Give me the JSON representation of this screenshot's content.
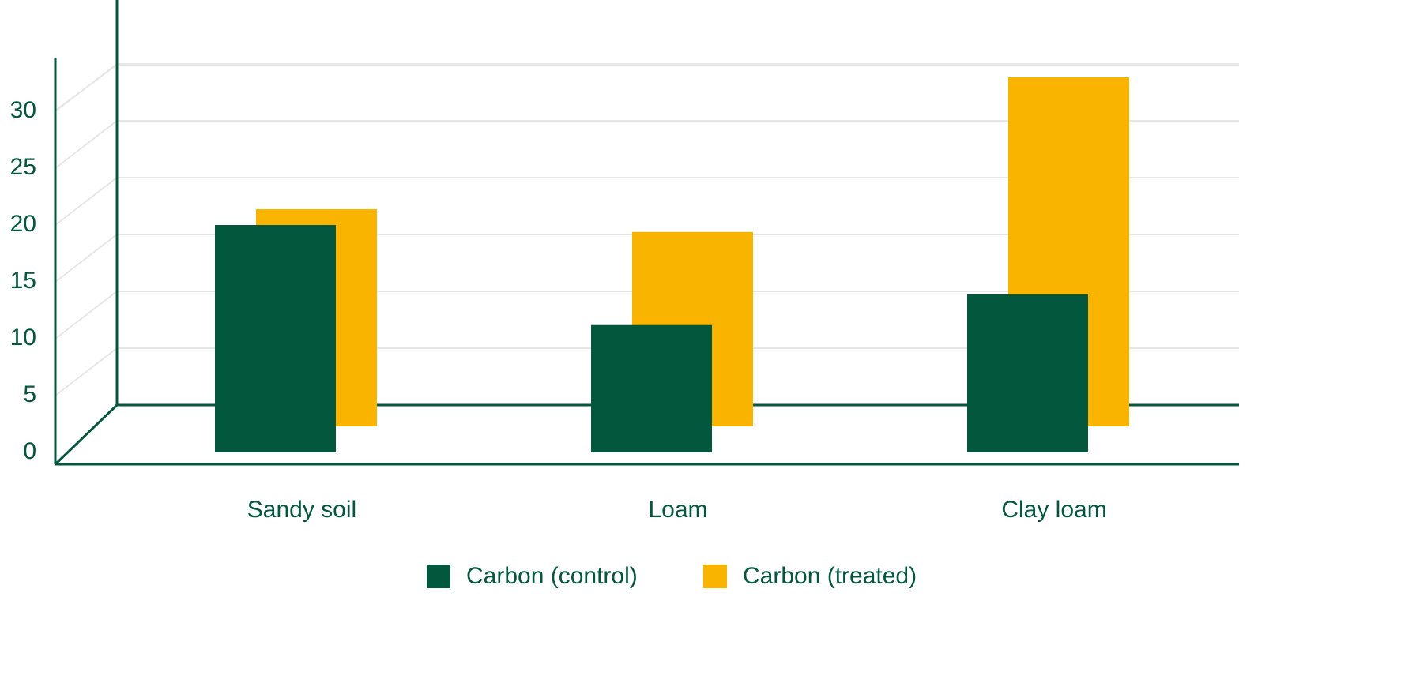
{
  "chart_data": {
    "type": "bar",
    "categories": [
      "Sandy soil",
      "Loam",
      "Clay loam"
    ],
    "series": [
      {
        "name": "Carbon (control)",
        "color": "#03573c",
        "values": [
          20,
          11.2,
          13.9
        ]
      },
      {
        "name": "Carbon (treated)",
        "color": "#f9b400",
        "values": [
          19.1,
          17.1,
          30.7
        ]
      }
    ],
    "ylim": [
      0,
      35
    ],
    "yticks": [
      0,
      5,
      10,
      15,
      20,
      25,
      30
    ],
    "grid": true,
    "legend": "bottom"
  }
}
